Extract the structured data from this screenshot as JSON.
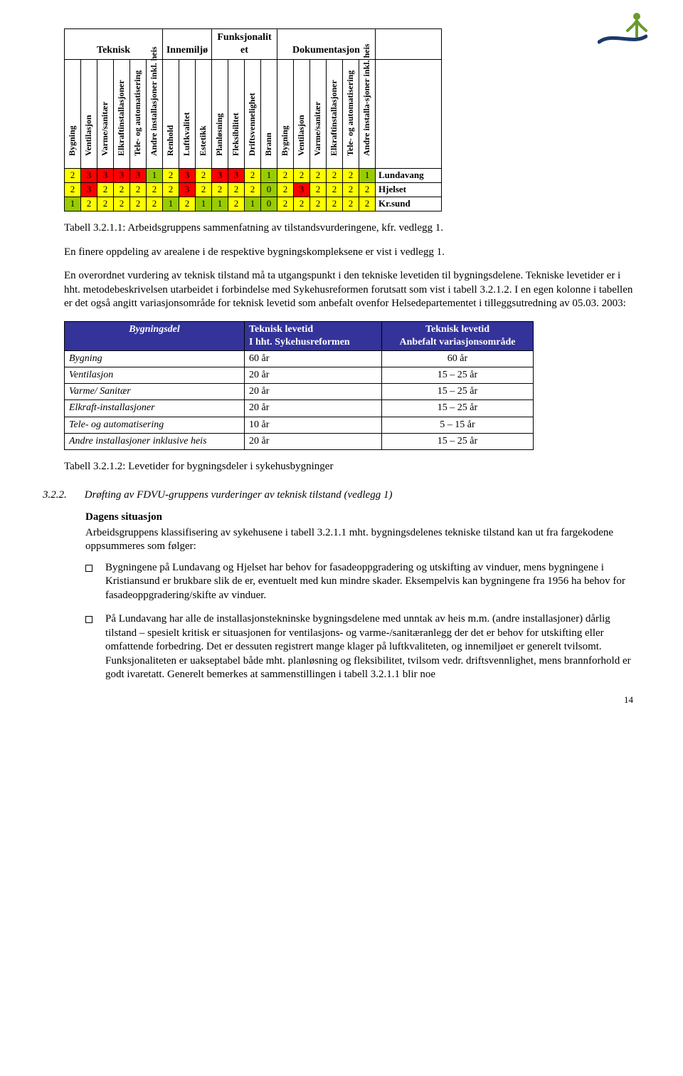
{
  "table1": {
    "groups": [
      "Teknisk",
      "Innemiljø",
      "Funksjonalit\net",
      "Dokumentasjon"
    ],
    "group_spans": [
      6,
      3,
      4,
      6
    ],
    "columns": [
      "Bygning",
      "Ventilasjon",
      "Varme/sanitær",
      "Elkraftinstallasjoner",
      "Tele- og\nautomatisering",
      "Andre installasjoner\ninkl. heis",
      "Renhold",
      "Luftkvalitet",
      "Estetikk",
      "Planløsning",
      "Fleksibilitet",
      "Driftsvennelighet",
      "Brann",
      "Bygning",
      "Ventilasjon",
      "Varme/sanitær",
      "Elkraftinstallasjoner",
      "Tele- og\nautomatisering",
      "Andre installa-sjoner\ninkl. heis"
    ],
    "rows": [
      {
        "values": [
          2,
          3,
          3,
          3,
          3,
          1,
          2,
          3,
          2,
          3,
          3,
          2,
          1,
          2,
          2,
          2,
          2,
          2,
          1
        ],
        "colors": [
          "yel",
          "red",
          "red",
          "red",
          "red",
          "grn",
          "yel",
          "red",
          "yel",
          "red",
          "red",
          "yel",
          "grn",
          "yel",
          "yel",
          "yel",
          "yel",
          "yel",
          "grn"
        ],
        "label": "Lundavang"
      },
      {
        "values": [
          2,
          3,
          2,
          2,
          2,
          2,
          2,
          3,
          2,
          2,
          2,
          2,
          0,
          2,
          3,
          2,
          2,
          2,
          2
        ],
        "colors": [
          "yel",
          "red",
          "yel",
          "yel",
          "yel",
          "yel",
          "yel",
          "red",
          "yel",
          "yel",
          "yel",
          "yel",
          "grn",
          "yel",
          "red",
          "yel",
          "yel",
          "yel",
          "yel"
        ],
        "label": "Hjelset"
      },
      {
        "values": [
          1,
          2,
          2,
          2,
          2,
          2,
          1,
          2,
          1,
          1,
          2,
          1,
          0,
          2,
          2,
          2,
          2,
          2,
          2
        ],
        "colors": [
          "grn",
          "yel",
          "yel",
          "yel",
          "yel",
          "yel",
          "grn",
          "yel",
          "grn",
          "grn",
          "yel",
          "grn",
          "grn",
          "yel",
          "yel",
          "yel",
          "yel",
          "yel",
          "yel"
        ],
        "label": "Kr.sund"
      }
    ]
  },
  "caption1": "Tabell 3.2.1.1: Arbeidsgruppens sammenfatning av tilstandsvurderingene, kfr. vedlegg 1.",
  "para1": "En finere oppdeling av arealene i de respektive bygningskompleksene er vist i vedlegg 1.",
  "para2": "En overordnet vurdering av teknisk tilstand må ta utgangspunkt i den tekniske levetiden til bygningsdelene. Tekniske levetider er i hht. metodebeskrivelsen utarbeidet i forbindelse med Sykehusreformen forutsatt som vist i tabell 3.2.1.2. I en egen kolonne i tabellen er det også angitt variasjonsområde for teknisk levetid som anbefalt ovenfor Helsedepartementet i tilleggsutredning av 05.03. 2003:",
  "table2": {
    "headers": [
      "Bygningsdel",
      "Teknisk levetid\nI hht. Sykehusreformen",
      "Teknisk levetid\nAnbefalt variasjonsområde"
    ],
    "rows": [
      [
        "Bygning",
        "60 år",
        "60 år"
      ],
      [
        "Ventilasjon",
        "20 år",
        "15 – 25 år"
      ],
      [
        "Varme/ Sanitær",
        "20 år",
        "15 – 25 år"
      ],
      [
        "Elkraft-installasjoner",
        "20 år",
        "15 – 25 år"
      ],
      [
        "Tele- og automatisering",
        "10 år",
        "5 – 15 år"
      ],
      [
        "Andre installasjoner inklusive heis",
        "20 år",
        "15 – 25 år"
      ]
    ]
  },
  "caption2": "Tabell 3.2.1.2: Levetider for bygningsdeler i sykehusbygninger",
  "section": {
    "num": "3.2.2.",
    "title": "Drøfting av FDVU-gruppens vurderinger av teknisk tilstand (vedlegg 1)"
  },
  "sub_lead": "Dagens situasjon",
  "sub_text": "Arbeidsgruppens klassifisering av sykehusene i tabell 3.2.1.1 mht. bygningsdelenes tekniske tilstand kan ut fra fargekodene oppsummeres som følger:",
  "bullets": [
    "Bygningene på Lundavang og Hjelset har behov for fasadeoppgradering og utskifting av vinduer, mens bygningene i Kristiansund er brukbare slik de er, eventuelt med kun mindre skader. Eksempelvis kan bygningene fra 1956 ha behov for fasadeoppgradering/skifte av vinduer.",
    "På Lundavang har alle de installasjonstekninske bygningsdelene med unntak av heis m.m. (andre installasjoner) dårlig tilstand – spesielt kritisk er situasjonen for ventilasjons- og varme-/sanitæranlegg der det er behov for utskifting eller omfattende forbedring. Det er dessuten registrert mange klager på luftkvaliteten, og innemiljøet er generelt tvilsomt. Funksjonaliteten er uakseptabel både mht. planløsning og fleksibilitet, tvilsom vedr. driftsvennlighet, mens brannforhold er godt ivaretatt. Generelt bemerkes at sammenstillingen i tabell 3.2.1.1 blir noe"
  ],
  "pagenum": "14",
  "colors": {
    "yel": "#ffff00",
    "red": "#ff0000",
    "grn": "#99cc00",
    "header_bg": "#333399"
  }
}
